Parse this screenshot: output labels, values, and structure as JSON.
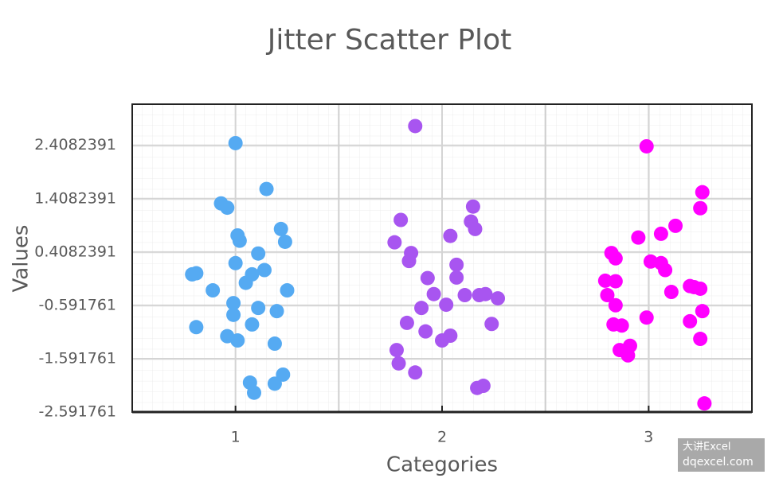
{
  "chart_data": {
    "type": "scatter",
    "title": "Jitter Scatter Plot",
    "x_label": "Categories",
    "y_label": "Values",
    "xlim": [
      0.5,
      3.5
    ],
    "xticks": [
      1,
      2,
      3
    ],
    "ylim": [
      -2.591761,
      3.18
    ],
    "yticks": [
      -2.591761,
      -1.591761,
      -0.591761,
      0.4082391,
      1.4082391,
      2.4082391
    ],
    "grid": true,
    "series": [
      {
        "color": "#55aaf2",
        "x": [
          1.0,
          1.15,
          0.93,
          0.96,
          1.01,
          1.02,
          1.22,
          1.24,
          1.11,
          1.0,
          1.14,
          1.08,
          0.79,
          0.81,
          1.05,
          0.89,
          1.25,
          0.99,
          1.11,
          0.99,
          1.2,
          1.08,
          0.81,
          0.96,
          1.01,
          1.19,
          1.23,
          1.07,
          1.19,
          1.09
        ],
        "values": [
          2.45,
          1.59,
          1.32,
          1.24,
          0.72,
          0.62,
          0.84,
          0.6,
          0.38,
          0.2,
          0.07,
          -0.01,
          -0.01,
          0.01,
          -0.17,
          -0.31,
          -0.31,
          -0.55,
          -0.64,
          -0.77,
          -0.7,
          -0.95,
          -1.0,
          -1.17,
          -1.25,
          -1.31,
          -1.89,
          -2.04,
          -2.06,
          -2.23
        ]
      },
      {
        "color": "#a855f0",
        "x": [
          1.87,
          2.15,
          1.8,
          2.14,
          2.16,
          2.04,
          1.77,
          1.85,
          1.84,
          2.07,
          2.07,
          1.93,
          1.96,
          2.11,
          2.18,
          2.21,
          2.27,
          2.02,
          1.9,
          1.83,
          2.24,
          1.92,
          2.04,
          2.0,
          1.78,
          1.79,
          1.87,
          2.2,
          2.17
        ],
        "values": [
          2.77,
          1.26,
          1.01,
          0.98,
          0.84,
          0.71,
          0.59,
          0.39,
          0.24,
          0.17,
          -0.07,
          -0.08,
          -0.38,
          -0.4,
          -0.4,
          -0.38,
          -0.46,
          -0.58,
          -0.64,
          -0.92,
          -0.94,
          -1.08,
          -1.16,
          -1.25,
          -1.43,
          -1.68,
          -1.85,
          -2.1,
          -2.14
        ]
      },
      {
        "color": "#ff00ff",
        "x": [
          2.99,
          3.26,
          3.25,
          3.13,
          3.06,
          2.95,
          2.82,
          2.84,
          3.01,
          3.06,
          3.08,
          2.79,
          2.84,
          3.2,
          3.22,
          3.25,
          3.11,
          2.8,
          2.84,
          3.26,
          2.99,
          3.2,
          2.83,
          2.87,
          2.91,
          2.86,
          2.9,
          3.25,
          3.27
        ],
        "values": [
          2.39,
          1.53,
          1.23,
          0.9,
          0.75,
          0.68,
          0.39,
          0.29,
          0.23,
          0.2,
          0.07,
          -0.13,
          -0.14,
          -0.23,
          -0.25,
          -0.28,
          -0.34,
          -0.4,
          -0.59,
          -0.7,
          -0.82,
          -0.89,
          -0.95,
          -0.97,
          -1.35,
          -1.43,
          -1.53,
          -1.22,
          -2.43
        ]
      }
    ]
  },
  "watermark": [
    "大讲Excel",
    "dqexcel.com"
  ]
}
